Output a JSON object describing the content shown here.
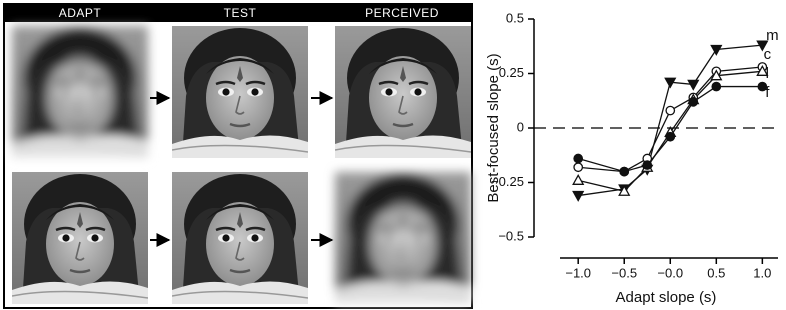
{
  "figure": {
    "column_headers": [
      "ADAPT",
      "TEST",
      "PERCEIVED"
    ]
  },
  "chart_data": {
    "type": "line",
    "xlabel": "Adapt slope (s)",
    "ylabel": "Best-focused slope (s)",
    "x": [
      -1,
      -0.5,
      -0.25,
      0,
      0.25,
      0.5,
      1
    ],
    "series": [
      {
        "name": "m",
        "color": "#111111",
        "marker": "triangle-down-filled",
        "values": [
          -0.31,
          -0.28,
          -0.19,
          0.21,
          0.2,
          0.36,
          0.38
        ]
      },
      {
        "name": "c",
        "color": "#111111",
        "marker": "circle-open",
        "values": [
          -0.18,
          -0.2,
          -0.14,
          0.08,
          0.14,
          0.26,
          0.28
        ]
      },
      {
        "name": "l",
        "color": "#111111",
        "marker": "triangle-up-open",
        "values": [
          -0.24,
          -0.29,
          -0.18,
          -0.02,
          0.13,
          0.24,
          0.26
        ]
      },
      {
        "name": "f",
        "color": "#111111",
        "marker": "circle-filled",
        "values": [
          -0.14,
          -0.2,
          -0.17,
          -0.04,
          0.12,
          0.19,
          0.19
        ]
      }
    ],
    "xlim": [
      -1.48,
      1.17
    ],
    "ylim": [
      -0.5,
      0.5
    ],
    "xticks": [
      {
        "value": -1,
        "label": "−1.0"
      },
      {
        "value": -0.5,
        "label": "−0.5"
      },
      {
        "value": 0,
        "label": "−0.0"
      },
      0.5,
      {
        "value": 1,
        "label": "1.0"
      }
    ],
    "yticks": [
      0.5,
      0.25,
      0,
      {
        "value": -0.25,
        "label": "−0.25"
      },
      {
        "value": -0.5,
        "label": "−0.5"
      }
    ],
    "hline": 0,
    "hline_style": "dashed"
  }
}
